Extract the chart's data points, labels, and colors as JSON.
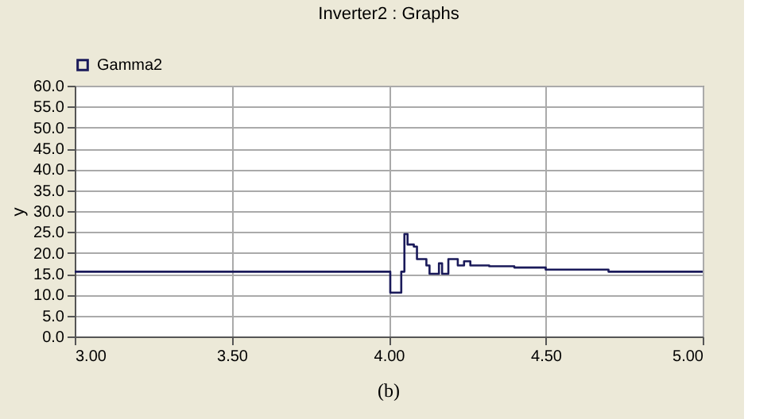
{
  "chart_data": {
    "type": "step",
    "title": "Inverter2 : Graphs",
    "ylabel": "y",
    "x": [
      3.0,
      4.0,
      4.005,
      4.04,
      4.05,
      4.06,
      4.08,
      4.09,
      4.12,
      4.13,
      4.16,
      4.17,
      4.19,
      4.22,
      4.24,
      4.26,
      4.32,
      4.4,
      4.5,
      4.62,
      4.7,
      5.0
    ],
    "series": [
      {
        "name": "Gamma2",
        "color": "#1a1a5a",
        "values": [
          15.5,
          15.5,
          10.5,
          15.5,
          24.5,
          22,
          21.5,
          18.5,
          17,
          15,
          17.5,
          15,
          18.5,
          17,
          18,
          17,
          16.8,
          16.5,
          16,
          16,
          15.5,
          15.5
        ]
      }
    ],
    "xlim": [
      3.0,
      5.0
    ],
    "xticks": [
      {
        "value": 3.0,
        "label": "3.00"
      },
      {
        "value": 3.5,
        "label": "3.50"
      },
      {
        "value": 4.0,
        "label": "4.00"
      },
      {
        "value": 4.5,
        "label": "4.50"
      },
      {
        "value": 5.0,
        "label": "5.00"
      }
    ],
    "ylim": [
      0,
      60
    ],
    "yticks": [
      {
        "value": 0,
        "label": "0.0"
      },
      {
        "value": 5,
        "label": "5.0"
      },
      {
        "value": 10,
        "label": "10.0"
      },
      {
        "value": 15,
        "label": "15.0"
      },
      {
        "value": 20,
        "label": "20.0"
      },
      {
        "value": 25,
        "label": "25.0"
      },
      {
        "value": 30,
        "label": "30.0"
      },
      {
        "value": 35,
        "label": "35.0"
      },
      {
        "value": 40,
        "label": "40.0"
      },
      {
        "value": 45,
        "label": "45.0"
      },
      {
        "value": 50,
        "label": "50.0"
      },
      {
        "value": 55,
        "label": "55.0"
      },
      {
        "value": 60,
        "label": "60.0"
      }
    ],
    "grid": true,
    "legend": "top left",
    "marker": "none",
    "line_style": "solid",
    "annotations": [
      "(b)"
    ]
  }
}
